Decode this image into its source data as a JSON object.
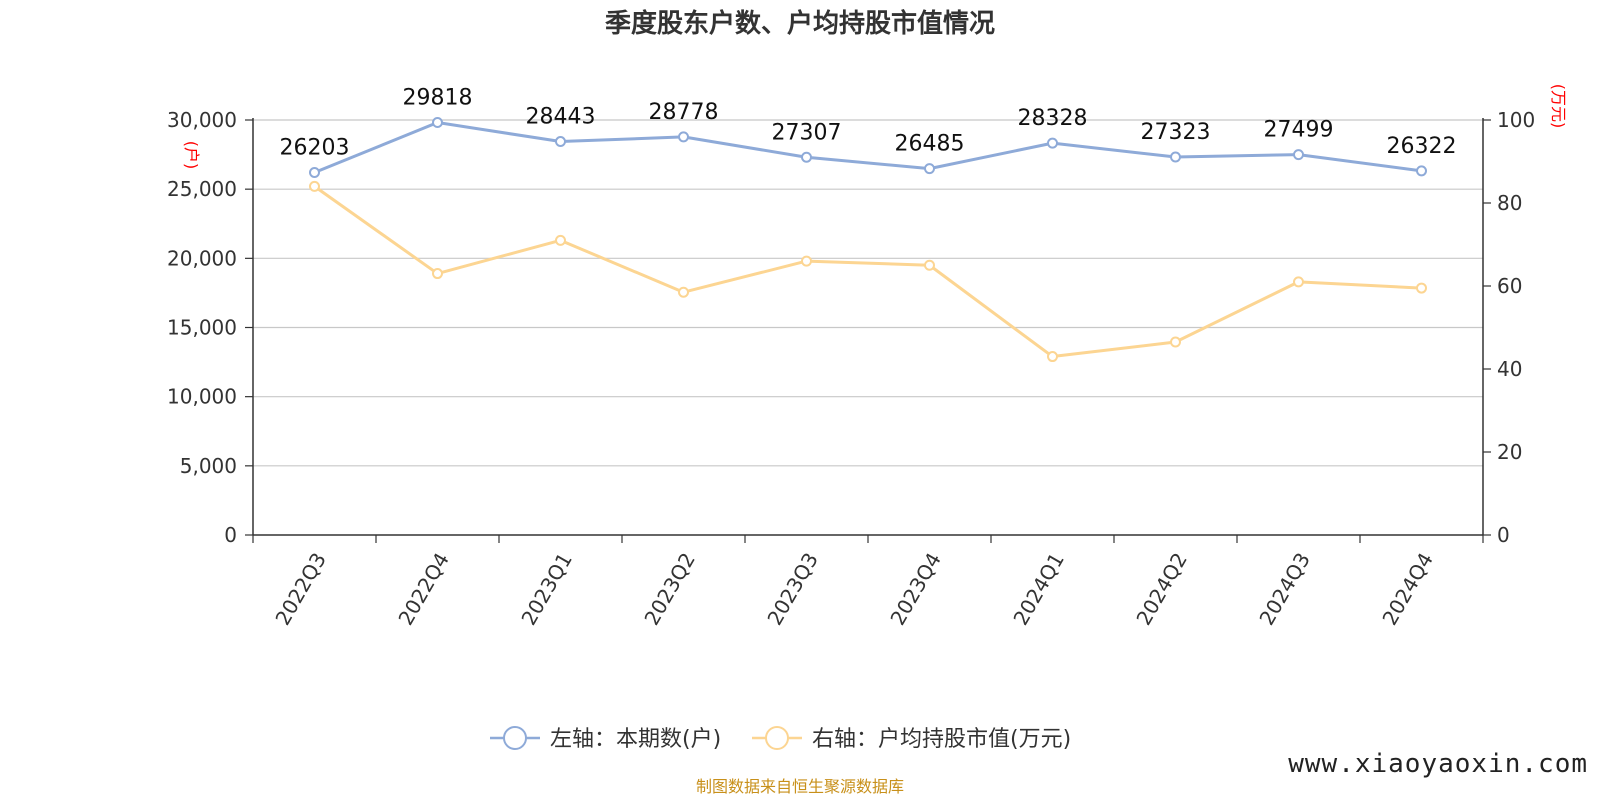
{
  "chart_data": {
    "type": "line",
    "title": "季度股东户数、户均持股市值情况",
    "categories": [
      "2022Q3",
      "2022Q4",
      "2023Q1",
      "2023Q2",
      "2023Q3",
      "2023Q4",
      "2024Q1",
      "2024Q2",
      "2024Q3",
      "2024Q4"
    ],
    "y_left": {
      "unit": "(户)",
      "range": [
        0,
        30000
      ],
      "ticks": [
        "0",
        "5,000",
        "10,000",
        "15,000",
        "20,000",
        "25,000",
        "30,000"
      ],
      "tick_values": [
        0,
        5000,
        10000,
        15000,
        20000,
        25000,
        30000
      ]
    },
    "y_right": {
      "unit": "(万元)",
      "range": [
        0,
        100
      ],
      "ticks": [
        "0",
        "20",
        "40",
        "60",
        "80",
        "100"
      ],
      "tick_values": [
        0,
        20,
        40,
        60,
        80,
        100
      ]
    },
    "grid": true,
    "legend_position": "bottom",
    "series": [
      {
        "name": "左轴：本期数(户)",
        "axis": "left",
        "color": "#8eaad8",
        "values": [
          26203,
          29818,
          28443,
          28778,
          27307,
          26485,
          28328,
          27323,
          27499,
          26322
        ],
        "labels": [
          "26203",
          "29818",
          "28443",
          "28778",
          "27307",
          "26485",
          "28328",
          "27323",
          "27499",
          "26322"
        ]
      },
      {
        "name": "右轴：户均持股市值(万元)",
        "axis": "right",
        "color": "#fcd592",
        "values": [
          84.0,
          63.0,
          71.0,
          58.5,
          66.0,
          65.0,
          43.0,
          46.5,
          61.0,
          59.5
        ]
      }
    ]
  },
  "footer": {
    "source": "制图数据来自恒生聚源数据库",
    "watermark": "www.xiaoyaoxin.com"
  }
}
